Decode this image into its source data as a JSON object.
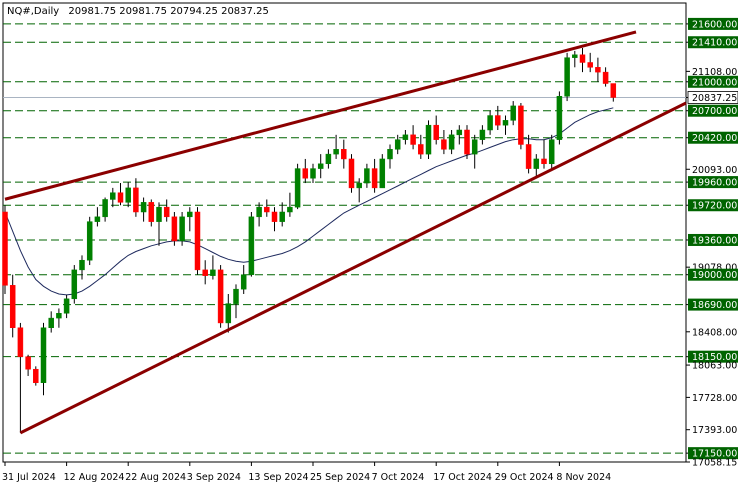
{
  "header": {
    "symbol": "NQ#,Daily",
    "ohlc": "20981.75 20981.75 20794.25 20837.25"
  },
  "chart_data": {
    "type": "candlestick",
    "y_range": [
      17058.15,
      21816.7
    ],
    "current_price": 20837.25,
    "price_axis_labels": [
      21600,
      21410,
      21108,
      21000,
      20837.25,
      20700,
      20420,
      20093,
      19960,
      19720,
      19360,
      19078,
      19000,
      18690,
      18408,
      18150,
      18063,
      17728,
      17393,
      17150,
      17058.15
    ],
    "horizontal_levels": [
      21600,
      21410,
      21000,
      20700,
      20420,
      19960,
      19720,
      19360,
      19000,
      18690,
      18150,
      17150
    ],
    "date_labels": [
      {
        "label": "31 Jul 2024",
        "index": 0
      },
      {
        "label": "12 Aug 2024",
        "index": 8
      },
      {
        "label": "22 Aug 2024",
        "index": 16
      },
      {
        "label": "3 Sep 2024",
        "index": 24
      },
      {
        "label": "13 Sep 2024",
        "index": 32
      },
      {
        "label": "25 Sep 2024",
        "index": 40
      },
      {
        "label": "7 Oct 2024",
        "index": 48
      },
      {
        "label": "17 Oct 2024",
        "index": 56
      },
      {
        "label": "29 Oct 2024",
        "index": 64
      },
      {
        "label": "8 Nov 2024",
        "index": 72
      }
    ],
    "bullish_color": "#008000",
    "bearish_color": "#ff0000",
    "level_color": "#006400",
    "channel_color": "#8b0000",
    "ma_color": "#1e2a5e",
    "candles": [
      [
        19650,
        19720,
        18800,
        18890
      ],
      [
        18890,
        19000,
        18350,
        18450
      ],
      [
        18450,
        18500,
        17360,
        18150
      ],
      [
        18150,
        18170,
        17950,
        18020
      ],
      [
        18020,
        18050,
        17850,
        17880
      ],
      [
        17880,
        18500,
        17750,
        18450
      ],
      [
        18450,
        18620,
        18400,
        18550
      ],
      [
        18550,
        18650,
        18450,
        18600
      ],
      [
        18600,
        18790,
        18550,
        18750
      ],
      [
        18750,
        19100,
        18700,
        19050
      ],
      [
        19050,
        19200,
        18950,
        19150
      ],
      [
        19150,
        19600,
        19100,
        19550
      ],
      [
        19550,
        19700,
        19500,
        19600
      ],
      [
        19600,
        19800,
        19550,
        19780
      ],
      [
        19780,
        19900,
        19700,
        19850
      ],
      [
        19850,
        19950,
        19720,
        19750
      ],
      [
        19750,
        19960,
        19700,
        19900
      ],
      [
        19900,
        20000,
        19600,
        19650
      ],
      [
        19650,
        19800,
        19550,
        19750
      ],
      [
        19750,
        19780,
        19500,
        19550
      ],
      [
        19550,
        19750,
        19300,
        19700
      ],
      [
        19700,
        19780,
        19550,
        19600
      ],
      [
        19600,
        19650,
        19300,
        19350
      ],
      [
        19350,
        19650,
        19300,
        19600
      ],
      [
        19600,
        19700,
        19450,
        19650
      ],
      [
        19650,
        19700,
        19000,
        19050
      ],
      [
        19050,
        19150,
        18900,
        18990
      ],
      [
        18990,
        19200,
        18950,
        19050
      ],
      [
        19050,
        19100,
        18450,
        18500
      ],
      [
        18500,
        18800,
        18400,
        18700
      ],
      [
        18700,
        18900,
        18550,
        18850
      ],
      [
        18850,
        19100,
        18800,
        19000
      ],
      [
        19000,
        19650,
        18980,
        19600
      ],
      [
        19600,
        19750,
        19500,
        19700
      ],
      [
        19700,
        19780,
        19600,
        19650
      ],
      [
        19650,
        19700,
        19450,
        19550
      ],
      [
        19550,
        19750,
        19500,
        19650
      ],
      [
        19650,
        19850,
        19600,
        19700
      ],
      [
        19700,
        20150,
        19680,
        20100
      ],
      [
        20100,
        20200,
        19950,
        20000
      ],
      [
        20000,
        20150,
        19950,
        20100
      ],
      [
        20100,
        20250,
        20000,
        20150
      ],
      [
        20150,
        20300,
        20100,
        20250
      ],
      [
        20250,
        20450,
        20200,
        20300
      ],
      [
        20300,
        20400,
        20100,
        20200
      ],
      [
        20200,
        20250,
        19850,
        19900
      ],
      [
        19900,
        20000,
        19750,
        19950
      ],
      [
        19950,
        20150,
        19900,
        20100
      ],
      [
        20100,
        20200,
        19850,
        19900
      ],
      [
        19900,
        20250,
        19900,
        20200
      ],
      [
        20200,
        20350,
        20100,
        20300
      ],
      [
        20300,
        20450,
        20250,
        20400
      ],
      [
        20400,
        20500,
        20350,
        20450
      ],
      [
        20450,
        20550,
        20300,
        20350
      ],
      [
        20350,
        20450,
        20200,
        20250
      ],
      [
        20250,
        20600,
        20200,
        20550
      ],
      [
        20550,
        20650,
        20350,
        20400
      ],
      [
        20400,
        20500,
        20250,
        20300
      ],
      [
        20300,
        20500,
        20250,
        20450
      ],
      [
        20450,
        20550,
        20350,
        20500
      ],
      [
        20500,
        20550,
        20200,
        20250
      ],
      [
        20250,
        20450,
        20100,
        20400
      ],
      [
        20400,
        20550,
        20350,
        20500
      ],
      [
        20500,
        20700,
        20450,
        20650
      ],
      [
        20650,
        20750,
        20500,
        20550
      ],
      [
        20550,
        20650,
        20450,
        20600
      ],
      [
        20600,
        20800,
        20550,
        20750
      ],
      [
        20750,
        20780,
        20300,
        20350
      ],
      [
        20350,
        20450,
        20050,
        20100
      ],
      [
        20100,
        20250,
        20000,
        20200
      ],
      [
        20200,
        20400,
        20100,
        20150
      ],
      [
        20150,
        20450,
        20100,
        20400
      ],
      [
        20400,
        20900,
        20350,
        20850
      ],
      [
        20850,
        21300,
        20800,
        21250
      ],
      [
        21250,
        21320,
        21150,
        21280
      ],
      [
        21280,
        21350,
        21100,
        21200
      ],
      [
        21200,
        21300,
        21100,
        21150
      ],
      [
        21150,
        21250,
        21000,
        21100
      ],
      [
        21100,
        21150,
        20950,
        20981.75
      ],
      [
        20981.75,
        20981.75,
        20794.25,
        20837.25
      ]
    ],
    "moving_average": [
      19650,
      19450,
      19250,
      19080,
      18950,
      18880,
      18830,
      18800,
      18790,
      18800,
      18830,
      18880,
      18940,
      19000,
      19070,
      19140,
      19200,
      19240,
      19270,
      19300,
      19320,
      19340,
      19350,
      19350,
      19340,
      19310,
      19270,
      19230,
      19190,
      19160,
      19140,
      19130,
      19140,
      19160,
      19180,
      19200,
      19220,
      19250,
      19290,
      19340,
      19400,
      19460,
      19520,
      19580,
      19640,
      19680,
      19720,
      19760,
      19800,
      19840,
      19880,
      19920,
      19960,
      20000,
      20040,
      20080,
      20120,
      20150,
      20180,
      20210,
      20240,
      20260,
      20290,
      20320,
      20350,
      20380,
      20400,
      20410,
      20410,
      20400,
      20400,
      20420,
      20460,
      20520,
      20580,
      20620,
      20660,
      20690,
      20710,
      20730
    ]
  }
}
